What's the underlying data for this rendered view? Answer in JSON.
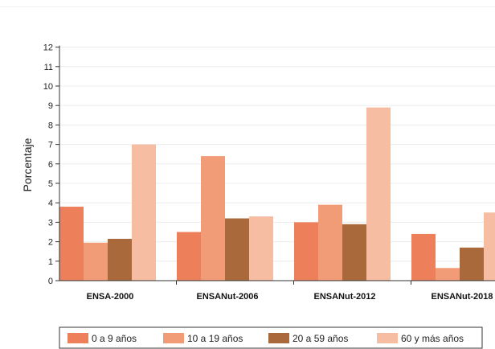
{
  "chart_data": {
    "type": "bar",
    "title": "",
    "xlabel": "",
    "ylabel": "Porcentaje",
    "ylim": [
      0,
      12
    ],
    "yticks": [
      0,
      1,
      2,
      3,
      4,
      5,
      6,
      7,
      8,
      9,
      10,
      11,
      12
    ],
    "grid": true,
    "legend_position": "bottom",
    "categories": [
      "ENSA-2000",
      "ENSANut-2006",
      "ENSANut-2012",
      "ENSANut-2018"
    ],
    "series": [
      {
        "name": "0 a 9 años",
        "color": "#EE7F5B",
        "values": [
          3.8,
          2.5,
          3.0,
          2.4
        ]
      },
      {
        "name": "10 a 19 años",
        "color": "#F19C77",
        "values": [
          1.95,
          6.4,
          3.9,
          0.65
        ]
      },
      {
        "name": "20 a 59 años",
        "color": "#A9693A",
        "values": [
          2.15,
          3.2,
          2.9,
          1.7
        ]
      },
      {
        "name": "60 y más años",
        "color": "#F6BDA2",
        "values": [
          7.0,
          3.3,
          8.9,
          3.5
        ]
      }
    ]
  }
}
